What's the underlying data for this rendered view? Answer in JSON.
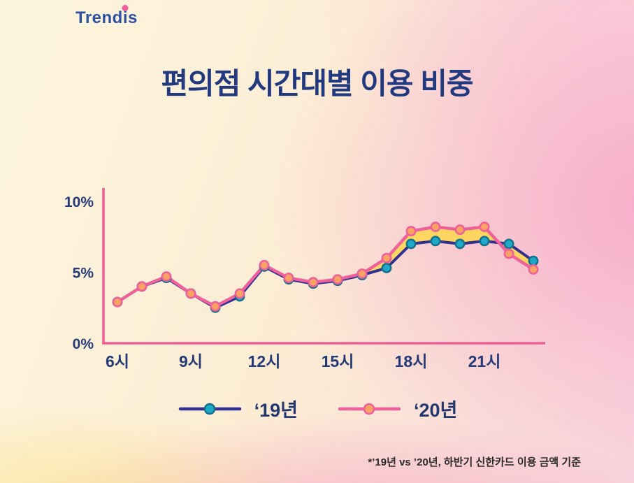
{
  "logo": {
    "part1": "Trend",
    "part2": "i",
    "part3": "s"
  },
  "title": {
    "bold": "편의점",
    "rest": " 시간대별 이용 비중"
  },
  "legend": {
    "items": [
      {
        "label": "‘19년"
      },
      {
        "label": "‘20년"
      }
    ]
  },
  "footnote": "*’19년 vs ’20년, 하반기 신한카드 이용 금액 기준",
  "colors": {
    "title_navy": "#20397f",
    "axis_pink": "#ef5f96",
    "band_yellow": "#fed657",
    "background_cream": "#fdf6dd",
    "background_pink": "#f6a8c8"
  },
  "chart_data": {
    "type": "line",
    "title": "편의점 시간대별 이용 비중",
    "x": [
      6,
      7,
      8,
      9,
      10,
      11,
      12,
      13,
      14,
      15,
      16,
      17,
      18,
      19,
      20,
      21,
      22,
      23
    ],
    "x_ticks_at": [
      6,
      9,
      12,
      15,
      18,
      21
    ],
    "x_tick_labels": [
      "6시",
      "9시",
      "12시",
      "15시",
      "18시",
      "21시"
    ],
    "y_ticks": [
      0,
      5,
      10
    ],
    "y_tick_labels": [
      "0%",
      "5%",
      "10%"
    ],
    "ylim": [
      0,
      10.5
    ],
    "axis_color": "#ef5f96",
    "fill_between_color": "#fed657",
    "legend_position": "bottom",
    "grid": false,
    "series": [
      {
        "key": "2019",
        "name": "‘19년",
        "line_color": "#2e3192",
        "dot_color": "#1fa9c9",
        "dot_ring": "#14718c",
        "values": [
          2.9,
          4.0,
          4.6,
          3.5,
          2.5,
          3.3,
          5.4,
          4.5,
          4.2,
          4.4,
          4.8,
          5.3,
          7.0,
          7.2,
          7.0,
          7.2,
          7.0,
          5.8
        ]
      },
      {
        "key": "2020",
        "name": "‘20년",
        "line_color": "#f0609b",
        "dot_color": "#f9a263",
        "dot_ring": "#ee5f9b",
        "values": [
          2.9,
          4.0,
          4.7,
          3.5,
          2.6,
          3.5,
          5.5,
          4.6,
          4.3,
          4.5,
          4.9,
          6.0,
          7.9,
          8.2,
          8.0,
          8.2,
          6.3,
          5.2
        ]
      }
    ]
  }
}
